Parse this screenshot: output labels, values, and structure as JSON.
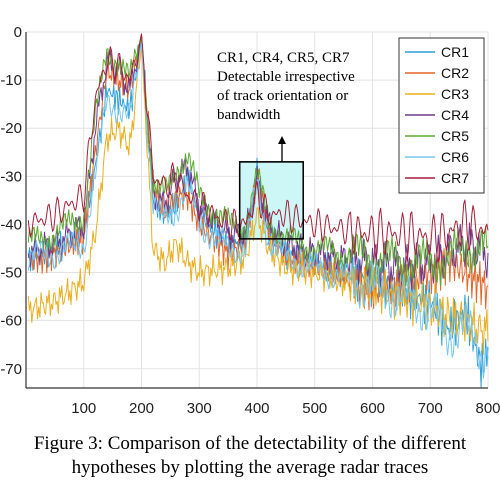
{
  "chart_data": {
    "type": "line",
    "title": "",
    "xlabel": "",
    "ylabel": "",
    "xlim": [
      0,
      800
    ],
    "ylim": [
      -74,
      0
    ],
    "x_ticks": [
      100,
      200,
      300,
      400,
      500,
      600,
      700,
      800
    ],
    "y_ticks": [
      0,
      -10,
      -20,
      -30,
      -40,
      -50,
      -60,
      -70
    ],
    "y_tick_labels": [
      "0",
      "-10",
      "-20",
      "-30",
      "-40",
      "-50",
      "-60",
      "-70"
    ],
    "grid": true,
    "legend_position": "top-right",
    "series": [
      {
        "name": "CR1",
        "color": "#2e9fd8",
        "x": [
          0,
          50,
          100,
          120,
          140,
          160,
          180,
          200,
          220,
          240,
          260,
          280,
          300,
          350,
          380,
          400,
          420,
          450,
          500,
          550,
          600,
          650,
          700,
          730,
          760,
          790,
          800
        ],
        "y": [
          -47,
          -45,
          -42,
          -28,
          -12,
          -14,
          -16,
          -1,
          -35,
          -38,
          -36,
          -30,
          -38,
          -44,
          -44,
          -29,
          -42,
          -46,
          -48,
          -50,
          -52,
          -54,
          -56,
          -62,
          -58,
          -70,
          -66
        ]
      },
      {
        "name": "CR2",
        "color": "#e0672a",
        "x": [
          0,
          50,
          100,
          120,
          140,
          160,
          180,
          200,
          220,
          240,
          260,
          280,
          300,
          350,
          380,
          400,
          420,
          450,
          500,
          550,
          600,
          650,
          700,
          730,
          760,
          790,
          800
        ],
        "y": [
          -48,
          -46,
          -43,
          -25,
          -8,
          -10,
          -12,
          -1,
          -32,
          -38,
          -34,
          -34,
          -40,
          -46,
          -44,
          -30,
          -41,
          -47,
          -49,
          -51,
          -54,
          -52,
          -50,
          -47,
          -50,
          -52,
          -54
        ]
      },
      {
        "name": "CR3",
        "color": "#e8b022",
        "x": [
          0,
          50,
          100,
          120,
          140,
          160,
          180,
          200,
          220,
          240,
          260,
          280,
          300,
          350,
          380,
          400,
          420,
          450,
          500,
          550,
          600,
          650,
          700,
          730,
          760,
          790,
          800
        ],
        "y": [
          -58,
          -56,
          -52,
          -42,
          -22,
          -20,
          -24,
          -3,
          -45,
          -48,
          -44,
          -48,
          -50,
          -49,
          -47,
          -38,
          -45,
          -49,
          -50,
          -52,
          -53,
          -55,
          -57,
          -59,
          -60,
          -62,
          -62
        ]
      },
      {
        "name": "CR4",
        "color": "#6e3a8c",
        "x": [
          0,
          50,
          100,
          120,
          140,
          160,
          180,
          200,
          220,
          240,
          260,
          280,
          300,
          350,
          380,
          400,
          420,
          450,
          500,
          550,
          600,
          650,
          700,
          730,
          760,
          790,
          800
        ],
        "y": [
          -46,
          -44,
          -40,
          -20,
          -6,
          -8,
          -12,
          -1,
          -34,
          -36,
          -30,
          -28,
          -36,
          -42,
          -42,
          -31,
          -40,
          -44,
          -46,
          -47,
          -48,
          -49,
          -48,
          -46,
          -44,
          -45,
          -47
        ]
      },
      {
        "name": "CR5",
        "color": "#5da832",
        "x": [
          0,
          50,
          100,
          120,
          140,
          160,
          180,
          200,
          220,
          240,
          260,
          280,
          300,
          350,
          380,
          400,
          420,
          450,
          500,
          550,
          600,
          650,
          700,
          730,
          760,
          790,
          800
        ],
        "y": [
          -44,
          -42,
          -38,
          -18,
          -4,
          -6,
          -10,
          -1,
          -32,
          -34,
          -28,
          -26,
          -34,
          -40,
          -40,
          -30,
          -39,
          -43,
          -45,
          -46,
          -47,
          -48,
          -48,
          -47,
          -45,
          -44,
          -46
        ]
      },
      {
        "name": "CR6",
        "color": "#78c8f0",
        "x": [
          0,
          50,
          100,
          120,
          140,
          160,
          180,
          200,
          220,
          240,
          260,
          280,
          300,
          350,
          380,
          400,
          420,
          450,
          500,
          550,
          600,
          650,
          700,
          730,
          760,
          790,
          800
        ],
        "y": [
          -47,
          -46,
          -44,
          -30,
          -14,
          -16,
          -18,
          -2,
          -36,
          -39,
          -37,
          -32,
          -40,
          -45,
          -45,
          -32,
          -43,
          -47,
          -49,
          -51,
          -53,
          -55,
          -58,
          -63,
          -61,
          -67,
          -65
        ]
      },
      {
        "name": "CR7",
        "color": "#a3203a",
        "x": [
          0,
          50,
          100,
          120,
          140,
          160,
          180,
          200,
          220,
          240,
          260,
          280,
          300,
          350,
          380,
          400,
          420,
          450,
          500,
          550,
          600,
          650,
          700,
          730,
          760,
          790,
          800
        ],
        "y": [
          -40,
          -38,
          -34,
          -14,
          -6,
          -7,
          -10,
          -1,
          -30,
          -32,
          -30,
          -34,
          -36,
          -40,
          -40,
          -34,
          -38,
          -38,
          -40,
          -41,
          -42,
          -42,
          -43,
          -42,
          -40,
          -41,
          -43
        ]
      }
    ],
    "annotation": {
      "lines": [
        "CR1, CR4, CR5, CR7",
        "Detectable irrespective",
        "of track orientation or",
        "bandwidth"
      ],
      "box_x_range": [
        370,
        480
      ],
      "box_y_range": [
        -43,
        -27
      ]
    }
  },
  "caption": {
    "line1": "Figure 3: Comparison of the detectability of the different",
    "line2": "hypotheses by plotting the average radar traces"
  },
  "colors": {
    "highlight_fill": "#cdf6f6",
    "grid": "#e3e3e3",
    "axis": "#333333"
  }
}
